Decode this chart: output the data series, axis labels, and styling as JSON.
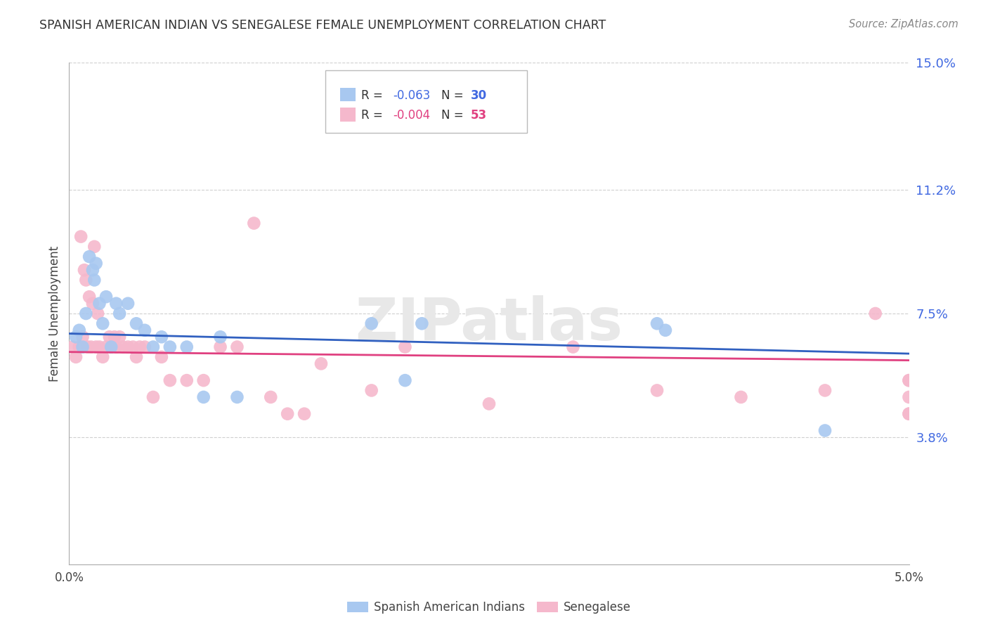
{
  "title": "SPANISH AMERICAN INDIAN VS SENEGALESE FEMALE UNEMPLOYMENT CORRELATION CHART",
  "source": "Source: ZipAtlas.com",
  "ylabel": "Female Unemployment",
  "xlim": [
    0.0,
    5.0
  ],
  "ylim": [
    0.0,
    15.0
  ],
  "yticks": [
    3.8,
    7.5,
    11.2,
    15.0
  ],
  "ytick_labels": [
    "3.8%",
    "7.5%",
    "11.2%",
    "15.0%"
  ],
  "xtick_positions": [
    0.0,
    1.25,
    2.5,
    3.75,
    5.0
  ],
  "xtick_labels": [
    "0.0%",
    "",
    "",
    "",
    "5.0%"
  ],
  "grid_color": "#d0d0d0",
  "background_color": "#ffffff",
  "watermark": "ZIPatlas",
  "series1_label": "Spanish American Indians",
  "series2_label": "Senegalese",
  "series1_color": "#a8c8f0",
  "series2_color": "#f5b8cc",
  "series1_line_color": "#3060c0",
  "series2_line_color": "#e04080",
  "legend_r1": "R = ",
  "legend_v1": "-0.063",
  "legend_n1_label": "N = ",
  "legend_n1_val": "30",
  "legend_r2": "R = ",
  "legend_v2": "-0.004",
  "legend_n2_label": "N = ",
  "legend_n2_val": "53",
  "accent_color": "#4169e1",
  "series1_x": [
    0.04,
    0.06,
    0.08,
    0.1,
    0.12,
    0.14,
    0.15,
    0.16,
    0.18,
    0.2,
    0.22,
    0.25,
    0.28,
    0.3,
    0.35,
    0.4,
    0.45,
    0.5,
    0.55,
    0.6,
    0.7,
    0.8,
    0.9,
    1.0,
    1.8,
    2.0,
    2.1,
    3.5,
    3.55,
    4.5
  ],
  "series1_y": [
    6.8,
    7.0,
    6.5,
    7.5,
    9.2,
    8.8,
    8.5,
    9.0,
    7.8,
    7.2,
    8.0,
    6.5,
    7.8,
    7.5,
    7.8,
    7.2,
    7.0,
    6.5,
    6.8,
    6.5,
    6.5,
    5.0,
    6.8,
    5.0,
    7.2,
    5.5,
    7.2,
    7.2,
    7.0,
    4.0
  ],
  "series2_x": [
    0.02,
    0.04,
    0.06,
    0.07,
    0.08,
    0.09,
    0.1,
    0.11,
    0.12,
    0.13,
    0.14,
    0.15,
    0.16,
    0.17,
    0.18,
    0.2,
    0.22,
    0.24,
    0.25,
    0.27,
    0.28,
    0.3,
    0.32,
    0.35,
    0.38,
    0.4,
    0.42,
    0.45,
    0.5,
    0.55,
    0.6,
    0.7,
    0.8,
    0.9,
    1.0,
    1.1,
    1.2,
    1.3,
    1.4,
    1.5,
    1.8,
    2.0,
    2.5,
    3.0,
    3.5,
    4.0,
    4.5,
    4.8,
    5.0,
    5.0,
    5.0,
    5.0,
    5.0
  ],
  "series2_y": [
    6.5,
    6.2,
    6.5,
    9.8,
    6.8,
    8.8,
    8.5,
    6.5,
    8.0,
    6.5,
    7.8,
    9.5,
    6.5,
    7.5,
    6.5,
    6.2,
    6.5,
    6.8,
    6.5,
    6.8,
    6.5,
    6.8,
    6.5,
    6.5,
    6.5,
    6.2,
    6.5,
    6.5,
    5.0,
    6.2,
    5.5,
    5.5,
    5.5,
    6.5,
    6.5,
    10.2,
    5.0,
    4.5,
    4.5,
    6.0,
    5.2,
    6.5,
    4.8,
    6.5,
    5.2,
    5.0,
    5.2,
    7.5,
    5.5,
    5.0,
    4.5,
    5.5,
    4.5
  ]
}
